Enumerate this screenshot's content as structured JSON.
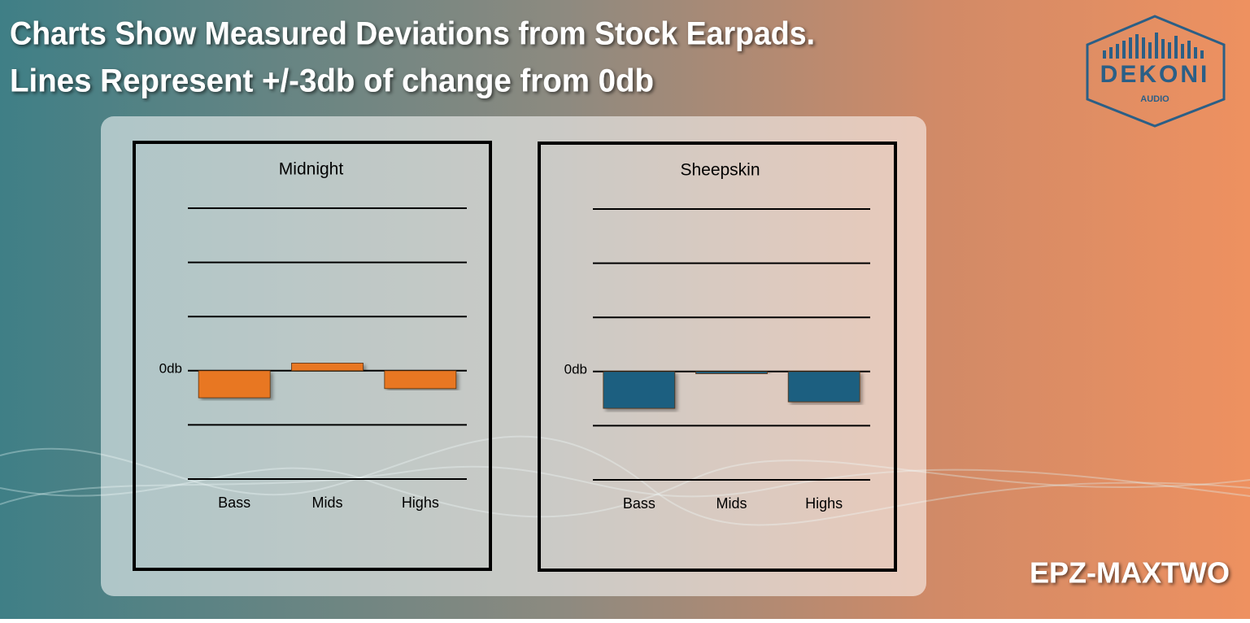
{
  "header": {
    "title": [
      "Charts Show Measured Deviations from Stock Earpads.",
      "Lines Represent +/-3db of change from 0db"
    ]
  },
  "logo": {
    "brand": "DEKONI",
    "sub": "AUDIO"
  },
  "model": "EPZ-MAXTWO",
  "chart_data": [
    {
      "type": "bar",
      "title": "Midnight",
      "categories": [
        "Bass",
        "Mids",
        "Highs"
      ],
      "values": [
        -0.5,
        0.14,
        -0.33
      ],
      "color": "#e87722",
      "ylim": [
        -2,
        3
      ],
      "yticks": [
        {
          "value": 3,
          "label": null
        },
        {
          "value": 2,
          "label": null
        },
        {
          "value": 1,
          "label": null
        },
        {
          "value": 0,
          "label": "0db"
        },
        {
          "value": -1,
          "label": null
        },
        {
          "value": -2,
          "label": null
        }
      ],
      "grid": true
    },
    {
      "type": "bar",
      "title": "Sheepskin",
      "categories": [
        "Bass",
        "Mids",
        "Highs"
      ],
      "values": [
        -0.68,
        -0.04,
        -0.56
      ],
      "color": "#1a5e80",
      "ylim": [
        -2,
        3
      ],
      "yticks": [
        {
          "value": 3,
          "label": null
        },
        {
          "value": 2,
          "label": null
        },
        {
          "value": 1,
          "label": null
        },
        {
          "value": 0,
          "label": "0db"
        },
        {
          "value": -1,
          "label": null
        },
        {
          "value": -2,
          "label": null
        }
      ],
      "grid": true
    }
  ]
}
